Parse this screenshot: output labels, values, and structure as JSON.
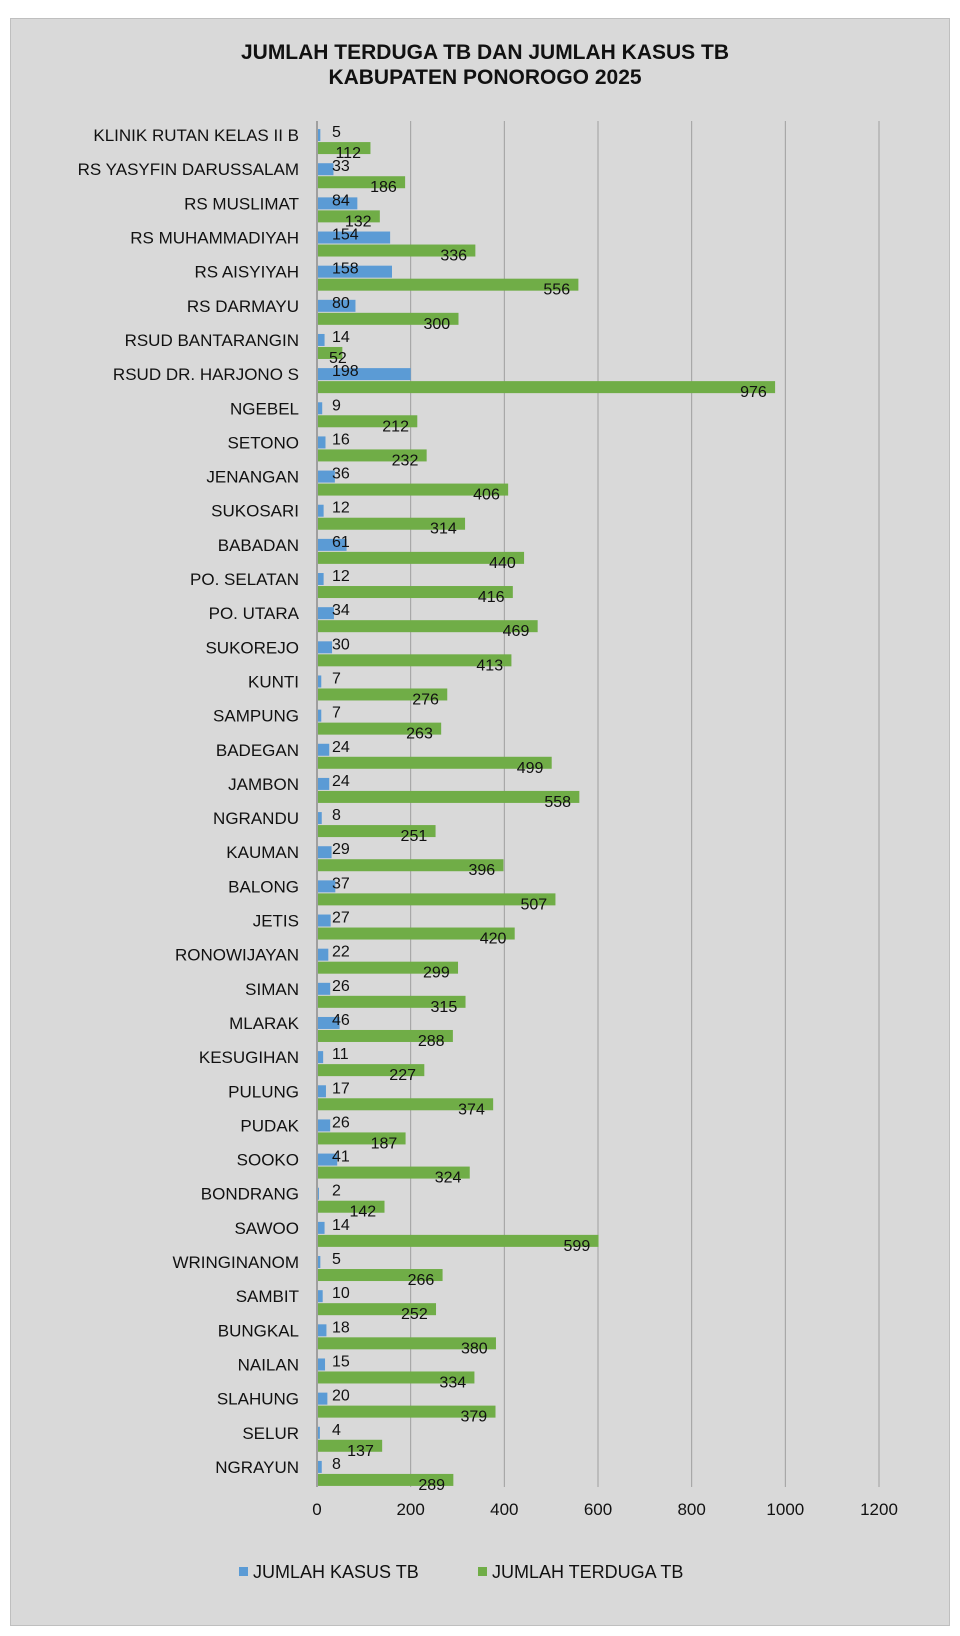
{
  "chart_data": {
    "type": "bar",
    "orientation": "horizontal",
    "title": "JUMLAH TERDUGA TB DAN JUMLAH KASUS TB",
    "subtitle": "KABUPATEN PONOROGO 2025",
    "xlabel": "",
    "ylabel": "",
    "xlim": [
      0,
      1200
    ],
    "xticks": [
      "0",
      "200",
      "400",
      "600",
      "800",
      "1000",
      "1200"
    ],
    "grid": "vertical",
    "legend_position": "bottom",
    "categories": [
      "KLINIK RUTAN KELAS II B",
      "RS YASYFIN DARUSSALAM",
      "RS MUSLIMAT",
      "RS MUHAMMADIYAH",
      "RS AISYIYAH",
      "RS DARMAYU",
      "RSUD BANTARANGIN",
      "RSUD DR. HARJONO S",
      "NGEBEL",
      "SETONO",
      "JENANGAN",
      "SUKOSARI",
      "BABADAN",
      "PO. SELATAN",
      "PO. UTARA",
      "SUKOREJO",
      "KUNTI",
      "SAMPUNG",
      "BADEGAN",
      "JAMBON",
      "NGRANDU",
      "KAUMAN",
      "BALONG",
      "JETIS",
      "RONOWIJAYAN",
      "SIMAN",
      "MLARAK",
      "KESUGIHAN",
      "PULUNG",
      "PUDAK",
      "SOOKO",
      "BONDRANG",
      "SAWOO",
      "WRINGINANOM",
      "SAMBIT",
      "BUNGKAL",
      "NAILAN",
      "SLAHUNG",
      "SELUR",
      "NGRAYUN"
    ],
    "series": [
      {
        "name": "JUMLAH KASUS TB",
        "color": "#5b9bd5",
        "values": [
          5,
          33,
          84,
          154,
          158,
          80,
          14,
          198,
          9,
          16,
          36,
          12,
          61,
          12,
          34,
          30,
          7,
          7,
          24,
          24,
          8,
          29,
          37,
          27,
          22,
          26,
          46,
          11,
          17,
          26,
          41,
          2,
          14,
          5,
          10,
          18,
          15,
          20,
          4,
          8
        ]
      },
      {
        "name": "JUMLAH TERDUGA TB",
        "color": "#70ad47",
        "values": [
          112,
          186,
          132,
          336,
          556,
          300,
          52,
          976,
          212,
          232,
          406,
          314,
          440,
          416,
          469,
          413,
          276,
          263,
          499,
          558,
          251,
          396,
          507,
          420,
          299,
          315,
          288,
          227,
          374,
          187,
          324,
          142,
          599,
          266,
          252,
          380,
          334,
          379,
          137,
          289
        ]
      }
    ]
  }
}
